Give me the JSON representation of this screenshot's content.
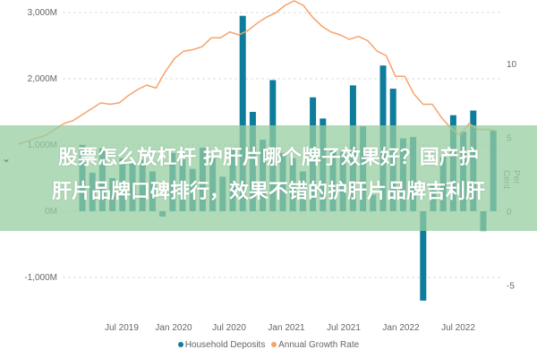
{
  "chart_data": {
    "type": "bar+line",
    "title": "",
    "xlabel": "",
    "ylabel_left": "",
    "ylabel_right": "Per Cent",
    "x_tick_labels": [
      "Jul 2019",
      "Jan 2020",
      "Jul 2020",
      "Jan 2021",
      "Jul 2021",
      "Jan 2022",
      "Jul 2022"
    ],
    "y_left_ticks": [
      "3,000M",
      "2,000M",
      "1,000M",
      "0M",
      "-1,000M"
    ],
    "y_left_range": [
      -1300,
      3100
    ],
    "y_right_ticks": [
      "10",
      "5",
      "0",
      "-5"
    ],
    "y_right_range": [
      -8,
      14
    ],
    "grid": true,
    "legend_position": "bottom",
    "series": [
      {
        "name": "Household Deposits",
        "type": "bar",
        "color": "#0E7C9B",
        "values": [
          1000,
          580,
          950,
          500,
          800,
          750,
          780,
          600,
          -80,
          880,
          800,
          640,
          960,
          800,
          520,
          950,
          2950,
          1500,
          1080,
          1980,
          880,
          800,
          600,
          1720,
          1400,
          920,
          900,
          1900,
          1280,
          250,
          2200,
          1850,
          1100,
          1120,
          -1350,
          400,
          820,
          1450,
          1200,
          1520,
          -300,
          1220
        ]
      },
      {
        "name": "Annual Growth Rate",
        "type": "line",
        "color": "#F5A36B",
        "values": [
          4.6,
          4.8,
          5.0,
          5.2,
          5.6,
          6.0,
          6.2,
          6.6,
          7.0,
          7.4,
          7.3,
          7.4,
          7.9,
          8.3,
          8.6,
          8.4,
          9.5,
          10.4,
          10.9,
          11.0,
          11.2,
          11.8,
          11.8,
          12.2,
          12.0,
          12.3,
          12.8,
          13.2,
          13.5,
          14.0,
          14.3,
          14.0,
          13.2,
          12.6,
          12.2,
          12.0,
          11.7,
          11.9,
          11.6,
          10.9,
          10.6,
          9.2,
          9.2,
          8.0,
          7.3,
          7.3,
          6.4,
          5.7,
          5.2,
          6.0,
          5.6,
          5.6,
          5.5
        ]
      }
    ]
  },
  "legend": {
    "items": [
      {
        "label": "Household Deposits",
        "color": "#0E7C9B"
      },
      {
        "label": "Annual Growth Rate",
        "color": "#F5A36B"
      }
    ]
  },
  "banner": {
    "line1": "股票怎么放杠杆 护肝片哪个牌子效果好？国产护",
    "line2": "肝片品牌口碑排行，效果不错的护肝片品牌吉利肝"
  },
  "axis_right_title": "Per Cent"
}
